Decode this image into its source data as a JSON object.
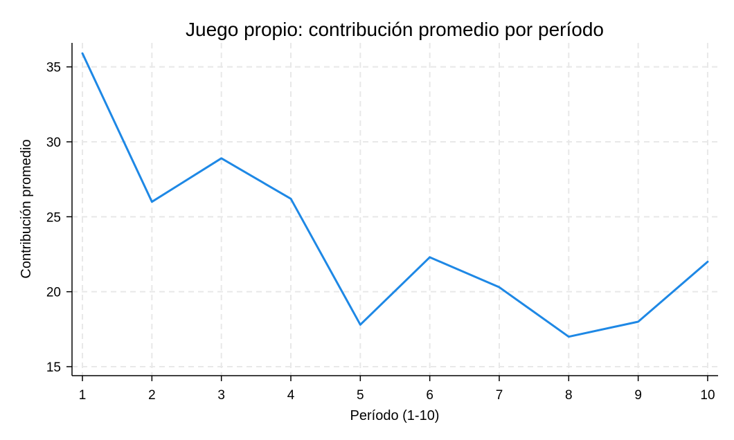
{
  "chart_data": {
    "type": "line",
    "title": "Juego propio: contribución promedio por período",
    "xlabel": "Período (1-10)",
    "ylabel": "Contribución promedio",
    "x": [
      1,
      2,
      3,
      4,
      5,
      6,
      7,
      8,
      9,
      10
    ],
    "x_tick_labels": [
      "1",
      "2",
      "3",
      "4",
      "5",
      "6",
      "7",
      "8",
      "9",
      "10"
    ],
    "y_ticks": [
      15,
      20,
      25,
      30,
      35
    ],
    "y_tick_labels": [
      "15",
      "20",
      "25",
      "30",
      "35"
    ],
    "ylim": [
      14.4,
      36.6
    ],
    "xlim": [
      0.85,
      10.15
    ],
    "grid": true,
    "series": [
      {
        "values": [
          35.9,
          26.0,
          28.9,
          26.2,
          17.8,
          22.3,
          20.3,
          17.0,
          18.0,
          22.0
        ],
        "color": "#1e88e5"
      }
    ]
  }
}
